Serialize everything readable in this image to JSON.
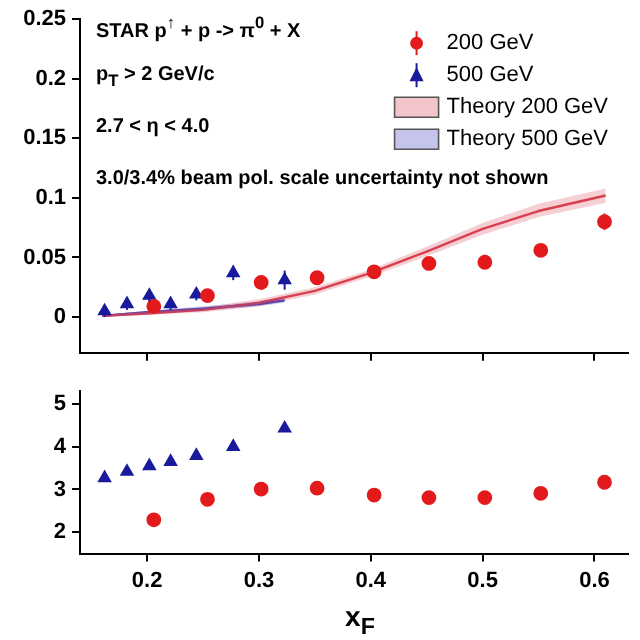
{
  "chart_data": [
    {
      "type": "scatter",
      "xlim": [
        0.14,
        0.63
      ],
      "xticks": [
        0.2,
        0.3,
        0.4,
        0.5,
        0.6
      ],
      "ylim": [
        -0.03,
        0.25
      ],
      "yticks": [
        0,
        0.05,
        0.1,
        0.15,
        0.2,
        0.25
      ],
      "tick_labels": "y",
      "legend": "top right",
      "annotations": [
        "STAR  p$^{↑}$ + p -> π$^{0}$ + X",
        "p$_{T}$ > 2 GeV/c",
        "2.7 < η < 4.0",
        "3.0/3.4% beam pol. scale uncertainty not shown"
      ],
      "series": [
        {
          "name": "200 GeV",
          "type": "scatter",
          "marker": "circle",
          "color": "#e31a1c",
          "x": [
            0.206,
            0.254,
            0.302,
            0.352,
            0.403,
            0.452,
            0.502,
            0.552,
            0.609
          ],
          "values": [
            0.009,
            0.018,
            0.029,
            0.033,
            0.038,
            0.045,
            0.046,
            0.056,
            0.08
          ],
          "errors": [
            0.003,
            0.003,
            0.003,
            0.003,
            0.003,
            0.003,
            0.003,
            0.004,
            0.007
          ]
        },
        {
          "name": "500 GeV",
          "type": "scatter",
          "marker": "triangle",
          "color": "#1a1a9c",
          "x": [
            0.162,
            0.182,
            0.202,
            0.221,
            0.244,
            0.277,
            0.323
          ],
          "values": [
            0.005,
            0.011,
            0.018,
            0.011,
            0.019,
            0.037,
            0.031
          ],
          "errors": [
            0.005,
            0.005,
            0.005,
            0.005,
            0.005,
            0.006,
            0.008
          ]
        },
        {
          "name": "Theory 200 GeV",
          "type": "line",
          "marker": "none",
          "color": "#d94050",
          "x": [
            0.16,
            0.2,
            0.25,
            0.3,
            0.35,
            0.4,
            0.45,
            0.5,
            0.55,
            0.61
          ],
          "values": [
            0.001,
            0.003,
            0.006,
            0.012,
            0.022,
            0.037,
            0.055,
            0.074,
            0.089,
            0.102
          ],
          "lower": [
            0.0,
            0.002,
            0.004,
            0.009,
            0.019,
            0.034,
            0.051,
            0.069,
            0.084,
            0.096
          ],
          "upper": [
            0.002,
            0.005,
            0.008,
            0.015,
            0.025,
            0.04,
            0.059,
            0.079,
            0.095,
            0.108
          ]
        },
        {
          "name": "Theory 500 GeV",
          "type": "line",
          "marker": "none",
          "color": "#4040c0",
          "x": [
            0.16,
            0.2,
            0.25,
            0.3,
            0.323
          ],
          "values": [
            0.001,
            0.004,
            0.007,
            0.011,
            0.014
          ],
          "lower": [
            0.0,
            0.003,
            0.005,
            0.009,
            0.012
          ],
          "upper": [
            0.002,
            0.005,
            0.009,
            0.013,
            0.016
          ]
        }
      ]
    },
    {
      "type": "scatter",
      "xlim": [
        0.14,
        0.63
      ],
      "xticks": [
        0.2,
        0.3,
        0.4,
        0.5,
        0.6
      ],
      "ylim": [
        1.5,
        5.3
      ],
      "yticks": [
        2,
        3,
        4,
        5
      ],
      "xlabel": "x$_{F}$",
      "series": [
        {
          "type": "scatter",
          "marker": "circle",
          "color": "#e31a1c",
          "x": [
            0.206,
            0.254,
            0.302,
            0.352,
            0.403,
            0.452,
            0.502,
            0.552,
            0.609
          ],
          "values": [
            2.29,
            2.77,
            3.01,
            3.03,
            2.87,
            2.81,
            2.81,
            2.91,
            3.17
          ]
        },
        {
          "type": "scatter",
          "marker": "triangle",
          "color": "#1a1a9c",
          "x": [
            0.162,
            0.182,
            0.202,
            0.221,
            0.244,
            0.277,
            0.323
          ],
          "values": [
            3.27,
            3.42,
            3.55,
            3.65,
            3.79,
            4.0,
            4.43
          ]
        }
      ]
    }
  ]
}
